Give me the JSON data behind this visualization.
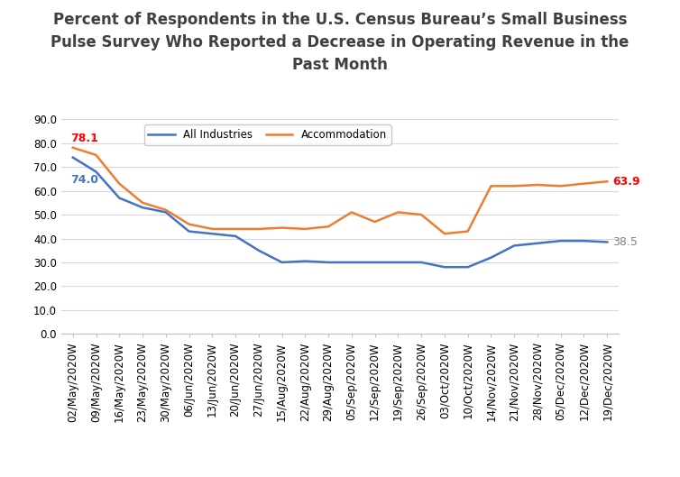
{
  "title": "Percent of Respondents in the U.S. Census Bureau’s Small Business\nPulse Survey Who Reported a Decrease in Operating Revenue in the\nPast Month",
  "x_labels": [
    "02/May/2020W",
    "09/May/2020W",
    "16/May/2020W",
    "23/May/2020W",
    "30/May/2020W",
    "06/Jun/2020W",
    "13/Jun/2020W",
    "20/Jun/2020W",
    "27/Jun/2020W",
    "15/Aug/2020W",
    "22/Aug/2020W",
    "29/Aug/2020W",
    "05/Sep/2020W",
    "12/Sep/2020W",
    "19/Sep/2020W",
    "26/Sep/2020W",
    "03/Oct/2020W",
    "10/Oct/2020W",
    "14/Nov/2020W",
    "21/Nov/2020W",
    "28/Nov/2020W",
    "05/Dec/2020W",
    "12/Dec/2020W",
    "19/Dec/2020W"
  ],
  "all_industries": [
    74.0,
    68.0,
    57.0,
    53.0,
    51.0,
    43.0,
    42.0,
    41.0,
    35.0,
    30.0,
    30.5,
    30.0,
    30.0,
    30.0,
    30.0,
    30.0,
    28.0,
    28.0,
    32.0,
    37.0,
    38.0,
    39.0,
    39.0,
    38.5
  ],
  "accommodation": [
    78.1,
    75.0,
    63.0,
    55.0,
    52.0,
    46.0,
    44.0,
    44.0,
    44.0,
    44.5,
    44.0,
    45.0,
    51.0,
    47.0,
    51.0,
    50.0,
    42.0,
    43.0,
    62.0,
    62.0,
    62.5,
    62.0,
    63.0,
    63.9
  ],
  "all_industries_color": "#4472C4",
  "accommodation_color": "#ED7D31",
  "first_label_all": "74.0",
  "first_label_accom": "78.1",
  "last_label_all": "38.5",
  "last_label_accom": "63.9",
  "first_label_all_color": "#4472C4",
  "first_label_accom_color": "#FF0000",
  "last_label_all_color": "#808080",
  "last_label_accom_color": "#FF0000",
  "ylim": [
    0,
    90
  ],
  "yticks": [
    0.0,
    10.0,
    20.0,
    30.0,
    40.0,
    50.0,
    60.0,
    70.0,
    80.0,
    90.0
  ],
  "legend_all": "All Industries",
  "legend_accom": "Accommodation",
  "background_color": "#FFFFFF",
  "grid_color": "#D9D9D9",
  "title_fontsize": 12,
  "axis_fontsize": 8.5,
  "label_fontsize": 9,
  "title_color": "#404040"
}
